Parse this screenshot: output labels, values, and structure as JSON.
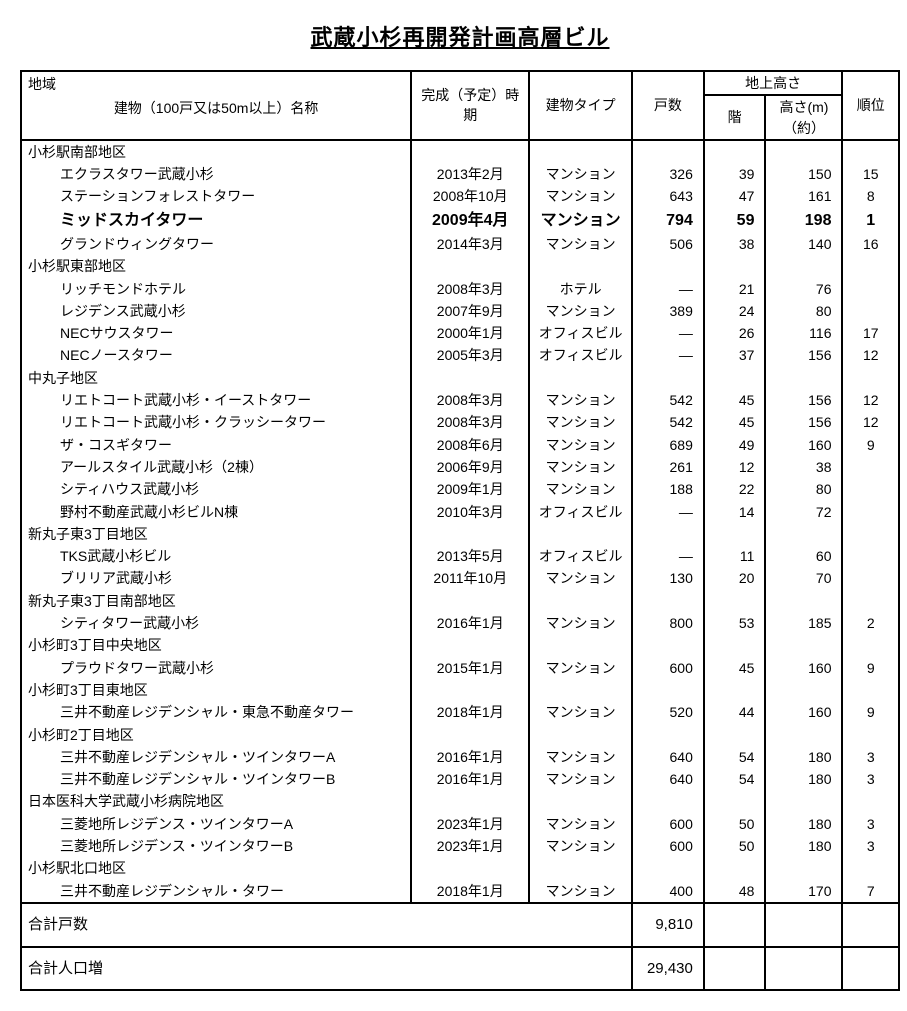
{
  "title": "武蔵小杉再開発計画高層ビル",
  "head": {
    "region": "地域",
    "building_name": "建物（100戸又は50m以上）名称",
    "completion": "完成（予定）時期",
    "type": "建物タイプ",
    "units": "戸数",
    "above_ground": "地上高さ",
    "floors": "階",
    "height": "高さ(m)\n（約）",
    "rank": "順位"
  },
  "sections": [
    {
      "region": "小杉駅南部地区",
      "rows": [
        {
          "name": "エクラスタワー武蔵小杉",
          "date": "2013年2月",
          "type": "マンション",
          "units": "326",
          "floors": "39",
          "height": "150",
          "rank": "15"
        },
        {
          "name": "ステーションフォレストタワー",
          "date": "2008年10月",
          "type": "マンション",
          "units": "643",
          "floors": "47",
          "height": "161",
          "rank": "8"
        },
        {
          "name": "ミッドスカイタワー",
          "date": "2009年4月",
          "type": "マンション",
          "units": "794",
          "floors": "59",
          "height": "198",
          "rank": "1",
          "bold": true
        },
        {
          "name": "グランドウィングタワー",
          "date": "2014年3月",
          "type": "マンション",
          "units": "506",
          "floors": "38",
          "height": "140",
          "rank": "16"
        }
      ]
    },
    {
      "region": "小杉駅東部地区",
      "rows": [
        {
          "name": "リッチモンドホテル",
          "date": "2008年3月",
          "type": "ホテル",
          "units": "―",
          "floors": "21",
          "height": "76",
          "rank": ""
        },
        {
          "name": "レジデンス武蔵小杉",
          "date": "2007年9月",
          "type": "マンション",
          "units": "389",
          "floors": "24",
          "height": "80",
          "rank": ""
        },
        {
          "name": "NECサウスタワー",
          "date": "2000年1月",
          "type": "オフィスビル",
          "units": "―",
          "floors": "26",
          "height": "116",
          "rank": "17"
        },
        {
          "name": "NECノースタワー",
          "date": "2005年3月",
          "type": "オフィスビル",
          "units": "―",
          "floors": "37",
          "height": "156",
          "rank": "12"
        }
      ]
    },
    {
      "region": "中丸子地区",
      "rows": [
        {
          "name": "リエトコート武蔵小杉・イーストタワー",
          "date": "2008年3月",
          "type": "マンション",
          "units": "542",
          "floors": "45",
          "height": "156",
          "rank": "12"
        },
        {
          "name": "リエトコート武蔵小杉・クラッシータワー",
          "date": "2008年3月",
          "type": "マンション",
          "units": "542",
          "floors": "45",
          "height": "156",
          "rank": "12"
        },
        {
          "name": "ザ・コスギタワー",
          "date": "2008年6月",
          "type": "マンション",
          "units": "689",
          "floors": "49",
          "height": "160",
          "rank": "9"
        },
        {
          "name": "アールスタイル武蔵小杉（2棟）",
          "date": "2006年9月",
          "type": "マンション",
          "units": "261",
          "floors": "12",
          "height": "38",
          "rank": ""
        },
        {
          "name": "シティハウス武蔵小杉",
          "date": "2009年1月",
          "type": "マンション",
          "units": "188",
          "floors": "22",
          "height": "80",
          "rank": ""
        },
        {
          "name": "野村不動産武蔵小杉ビルN棟",
          "date": "2010年3月",
          "type": "オフィスビル",
          "units": "―",
          "floors": "14",
          "height": "72",
          "rank": ""
        }
      ]
    },
    {
      "region": "新丸子東3丁目地区",
      "rows": [
        {
          "name": "TKS武蔵小杉ビル",
          "date": "2013年5月",
          "type": "オフィスビル",
          "units": "―",
          "floors": "11",
          "height": "60",
          "rank": ""
        },
        {
          "name": "ブリリア武蔵小杉",
          "date": "2011年10月",
          "type": "マンション",
          "units": "130",
          "floors": "20",
          "height": "70",
          "rank": ""
        }
      ]
    },
    {
      "region": "新丸子東3丁目南部地区",
      "rows": [
        {
          "name": "シティタワー武蔵小杉",
          "date": "2016年1月",
          "type": "マンション",
          "units": "800",
          "floors": "53",
          "height": "185",
          "rank": "2"
        }
      ]
    },
    {
      "region": "小杉町3丁目中央地区",
      "rows": [
        {
          "name": "プラウドタワー武蔵小杉",
          "date": "2015年1月",
          "type": "マンション",
          "units": "600",
          "floors": "45",
          "height": "160",
          "rank": "9"
        }
      ]
    },
    {
      "region": "小杉町3丁目東地区",
      "rows": [
        {
          "name": "三井不動産レジデンシャル・東急不動産タワー",
          "date": "2018年1月",
          "type": "マンション",
          "units": "520",
          "floors": "44",
          "height": "160",
          "rank": "9"
        }
      ]
    },
    {
      "region": "小杉町2丁目地区",
      "rows": [
        {
          "name": "三井不動産レジデンシャル・ツインタワーA",
          "date": "2016年1月",
          "type": "マンション",
          "units": "640",
          "floors": "54",
          "height": "180",
          "rank": "3"
        },
        {
          "name": "三井不動産レジデンシャル・ツインタワーB",
          "date": "2016年1月",
          "type": "マンション",
          "units": "640",
          "floors": "54",
          "height": "180",
          "rank": "3"
        }
      ]
    },
    {
      "region": "日本医科大学武蔵小杉病院地区",
      "rows": [
        {
          "name": "三菱地所レジデンス・ツインタワーA",
          "date": "2023年1月",
          "type": "マンション",
          "units": "600",
          "floors": "50",
          "height": "180",
          "rank": "3"
        },
        {
          "name": "三菱地所レジデンス・ツインタワーB",
          "date": "2023年1月",
          "type": "マンション",
          "units": "600",
          "floors": "50",
          "height": "180",
          "rank": "3"
        }
      ]
    },
    {
      "region": "小杉駅北口地区",
      "rows": [
        {
          "name": "三井不動産レジデンシャル・タワー",
          "date": "2018年1月",
          "type": "マンション",
          "units": "400",
          "floors": "48",
          "height": "170",
          "rank": "7"
        }
      ]
    }
  ],
  "totals": {
    "units_label": "合計戸数",
    "units_value": "9,810",
    "pop_label": "合計人口増",
    "pop_value": "29,430"
  }
}
